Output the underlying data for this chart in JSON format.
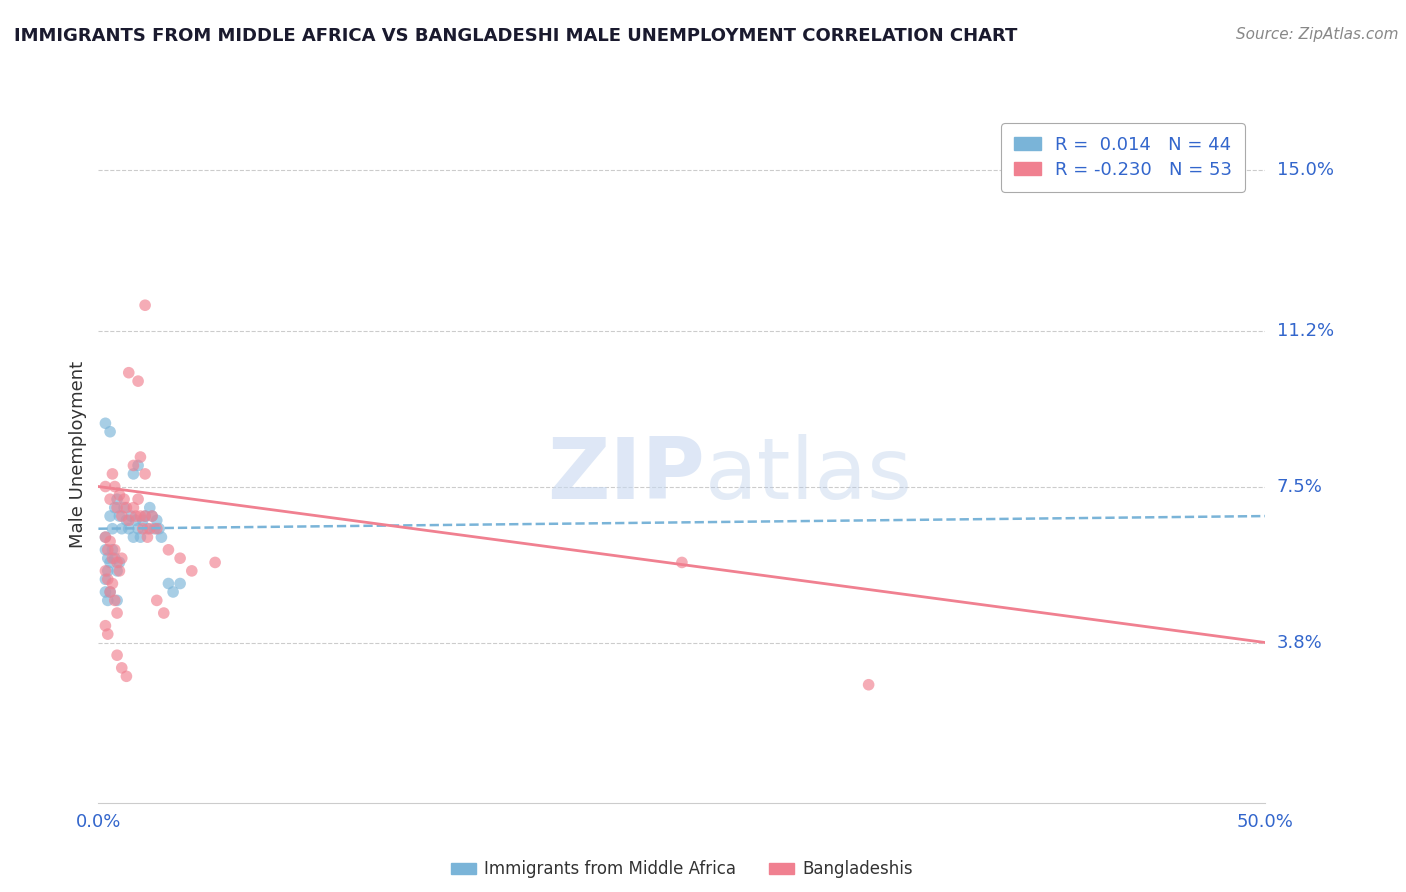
{
  "title": "IMMIGRANTS FROM MIDDLE AFRICA VS BANGLADESHI MALE UNEMPLOYMENT CORRELATION CHART",
  "source": "Source: ZipAtlas.com",
  "ylabel": "Male Unemployment",
  "xlim": [
    0.0,
    0.5
  ],
  "ylim": [
    0.0,
    0.165
  ],
  "yticks": [
    0.038,
    0.075,
    0.112,
    0.15
  ],
  "ytick_labels": [
    "3.8%",
    "7.5%",
    "11.2%",
    "15.0%"
  ],
  "xticks": [
    0.0,
    0.5
  ],
  "xtick_labels": [
    "0.0%",
    "50.0%"
  ],
  "watermark_zip": "ZIP",
  "watermark_atlas": "atlas",
  "blue_color": "#7ab4d8",
  "pink_color": "#f08090",
  "blue_scatter": [
    [
      0.003,
      0.063
    ],
    [
      0.005,
      0.068
    ],
    [
      0.006,
      0.065
    ],
    [
      0.007,
      0.07
    ],
    [
      0.008,
      0.072
    ],
    [
      0.009,
      0.068
    ],
    [
      0.01,
      0.065
    ],
    [
      0.011,
      0.07
    ],
    [
      0.012,
      0.067
    ],
    [
      0.013,
      0.065
    ],
    [
      0.014,
      0.068
    ],
    [
      0.015,
      0.063
    ],
    [
      0.016,
      0.067
    ],
    [
      0.017,
      0.065
    ],
    [
      0.018,
      0.063
    ],
    [
      0.019,
      0.067
    ],
    [
      0.02,
      0.068
    ],
    [
      0.021,
      0.065
    ],
    [
      0.022,
      0.07
    ],
    [
      0.023,
      0.068
    ],
    [
      0.024,
      0.065
    ],
    [
      0.025,
      0.067
    ],
    [
      0.026,
      0.065
    ],
    [
      0.027,
      0.063
    ],
    [
      0.003,
      0.06
    ],
    [
      0.004,
      0.058
    ],
    [
      0.005,
      0.057
    ],
    [
      0.006,
      0.06
    ],
    [
      0.007,
      0.058
    ],
    [
      0.008,
      0.055
    ],
    [
      0.009,
      0.057
    ],
    [
      0.003,
      0.053
    ],
    [
      0.004,
      0.055
    ],
    [
      0.005,
      0.05
    ],
    [
      0.003,
      0.05
    ],
    [
      0.004,
      0.048
    ],
    [
      0.03,
      0.052
    ],
    [
      0.032,
      0.05
    ],
    [
      0.035,
      0.052
    ],
    [
      0.003,
      0.09
    ],
    [
      0.005,
      0.088
    ],
    [
      0.015,
      0.078
    ],
    [
      0.017,
      0.08
    ],
    [
      0.008,
      0.048
    ]
  ],
  "pink_scatter": [
    [
      0.003,
      0.075
    ],
    [
      0.005,
      0.072
    ],
    [
      0.006,
      0.078
    ],
    [
      0.007,
      0.075
    ],
    [
      0.008,
      0.07
    ],
    [
      0.009,
      0.073
    ],
    [
      0.01,
      0.068
    ],
    [
      0.011,
      0.072
    ],
    [
      0.012,
      0.07
    ],
    [
      0.013,
      0.067
    ],
    [
      0.015,
      0.07
    ],
    [
      0.016,
      0.068
    ],
    [
      0.017,
      0.072
    ],
    [
      0.018,
      0.068
    ],
    [
      0.019,
      0.065
    ],
    [
      0.02,
      0.068
    ],
    [
      0.021,
      0.063
    ],
    [
      0.022,
      0.065
    ],
    [
      0.023,
      0.068
    ],
    [
      0.025,
      0.065
    ],
    [
      0.003,
      0.063
    ],
    [
      0.004,
      0.06
    ],
    [
      0.005,
      0.062
    ],
    [
      0.006,
      0.058
    ],
    [
      0.007,
      0.06
    ],
    [
      0.008,
      0.057
    ],
    [
      0.009,
      0.055
    ],
    [
      0.01,
      0.058
    ],
    [
      0.003,
      0.055
    ],
    [
      0.004,
      0.053
    ],
    [
      0.005,
      0.05
    ],
    [
      0.006,
      0.052
    ],
    [
      0.007,
      0.048
    ],
    [
      0.008,
      0.045
    ],
    [
      0.003,
      0.042
    ],
    [
      0.004,
      0.04
    ],
    [
      0.03,
      0.06
    ],
    [
      0.035,
      0.058
    ],
    [
      0.04,
      0.055
    ],
    [
      0.015,
      0.08
    ],
    [
      0.018,
      0.082
    ],
    [
      0.02,
      0.078
    ],
    [
      0.05,
      0.057
    ],
    [
      0.25,
      0.057
    ],
    [
      0.33,
      0.028
    ],
    [
      0.013,
      0.102
    ],
    [
      0.017,
      0.1
    ],
    [
      0.02,
      0.118
    ],
    [
      0.025,
      0.048
    ],
    [
      0.028,
      0.045
    ],
    [
      0.008,
      0.035
    ],
    [
      0.01,
      0.032
    ],
    [
      0.012,
      0.03
    ]
  ],
  "blue_trend": {
    "x": [
      0.0,
      0.5
    ],
    "y": [
      0.065,
      0.068
    ]
  },
  "pink_trend": {
    "x": [
      0.0,
      0.5
    ],
    "y": [
      0.075,
      0.038
    ]
  },
  "grid_color": "#cccccc",
  "tick_color": "#3366cc",
  "background_color": "#ffffff",
  "legend1": [
    {
      "label": "R =  0.014   N = 44",
      "color": "#aec6f0"
    },
    {
      "label": "R = -0.230   N = 53",
      "color": "#ffb6c1"
    }
  ],
  "legend2_labels": [
    "Immigrants from Middle Africa",
    "Bangladeshis"
  ],
  "legend2_colors": [
    "#7ab4d8",
    "#f08090"
  ]
}
